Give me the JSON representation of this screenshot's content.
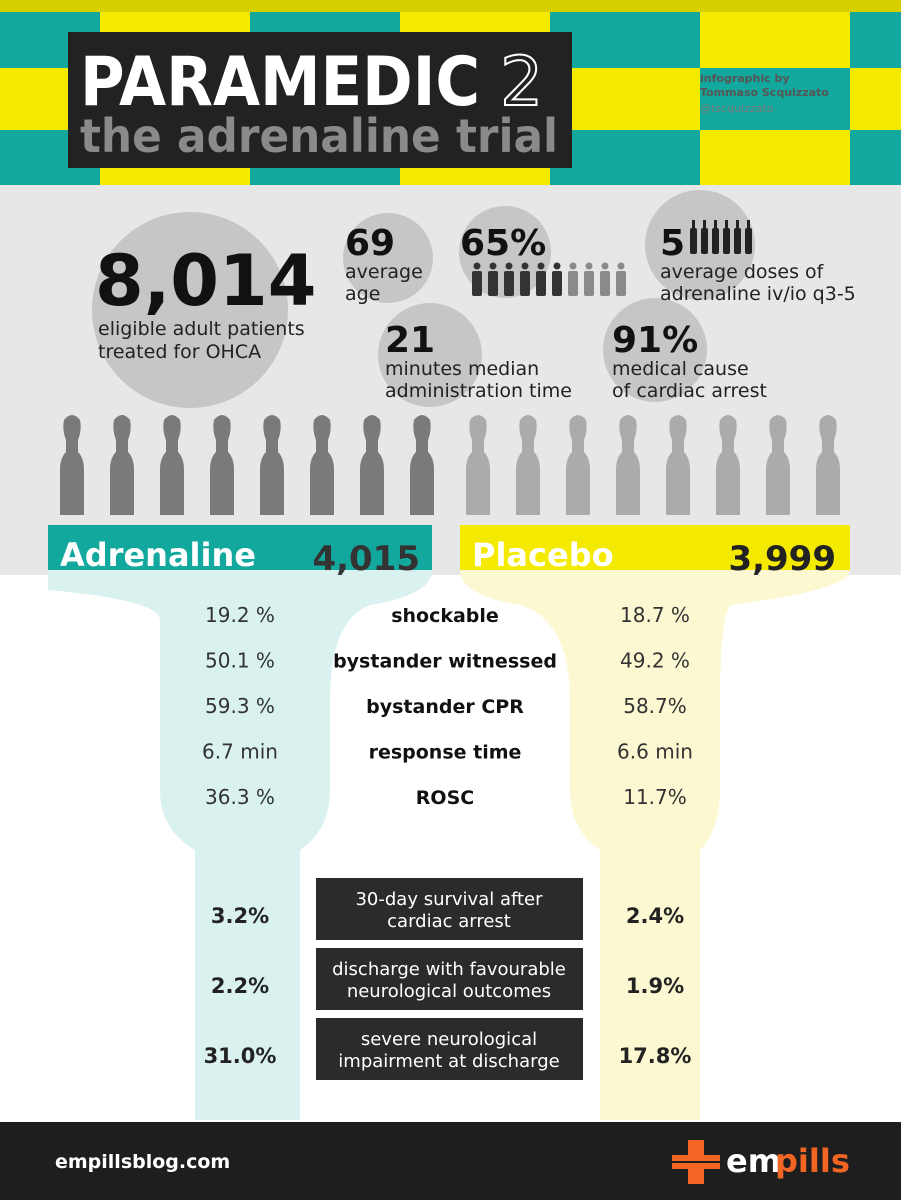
{
  "header": {
    "title": "PARAMEDIC",
    "title_number": "2",
    "subtitle": "the adrenaline trial",
    "credit": [
      "infographic by",
      "Tommaso Scquizzato",
      "@tscquizzato"
    ]
  },
  "stats": [
    {
      "value": "8,014",
      "label": [
        "eligible adult patients",
        "treated for OHCA"
      ]
    },
    {
      "value": "69",
      "label": [
        "average",
        "age"
      ]
    },
    {
      "value": "65%",
      "label": []
    },
    {
      "value": "5",
      "label": [
        "average doses of",
        "adrenaline iv/io q3-5"
      ]
    },
    {
      "value": "21",
      "label": [
        "minutes median",
        "administration time"
      ]
    },
    {
      "value": "91%",
      "label": [
        "medical cause",
        "of cardiac arrest"
      ]
    }
  ],
  "arms": [
    {
      "name": "Adrenaline",
      "count": "4,015"
    },
    {
      "name": "Placebo",
      "count": "3,999"
    }
  ],
  "characteristics": [
    [
      "19.2 %",
      "shockable",
      "18.7 %"
    ],
    [
      "50.1 %",
      "bystander witnessed",
      "49.2 %"
    ],
    [
      "59.3 %",
      "bystander CPR",
      "58.7%"
    ],
    [
      "6.7 min",
      "response time",
      "6.6 min"
    ],
    [
      "36.3 %",
      "ROSC",
      "11.7%"
    ]
  ],
  "outcomes": [
    {
      "adrenaline": "3.2%",
      "label": [
        "30-day survival after",
        "cardiac arrest"
      ],
      "placebo": "2.4%"
    },
    {
      "adrenaline": "2.2%",
      "label": [
        "discharge with favourable",
        "neurological outcomes"
      ],
      "placebo": "1.9%"
    },
    {
      "adrenaline": "31.0%",
      "label": [
        "severe neurological",
        "impairment at discharge"
      ],
      "placebo": "17.8%"
    }
  ],
  "footer": {
    "site": "empillsblog.com",
    "logo": [
      "em",
      "pills"
    ]
  }
}
